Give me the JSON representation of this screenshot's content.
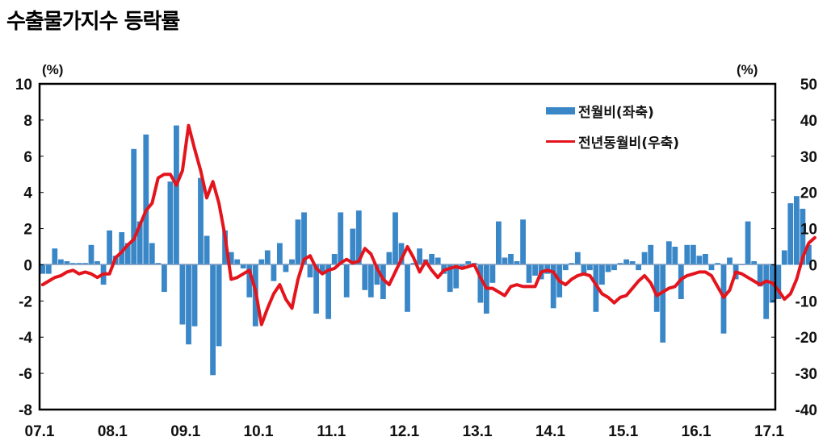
{
  "title": "수출물가지수 등락률",
  "colors": {
    "bar": "#3a87c8",
    "line": "#e4141c",
    "axis": "#000000"
  },
  "legend": {
    "bar_label": "전월비(좌축)",
    "line_label": "전년동월비(우축)"
  },
  "axes": {
    "left_unit": "(%)",
    "right_unit": "(%)",
    "left_ticks": [
      "10",
      "8",
      "6",
      "4",
      "2",
      "0",
      "-2",
      "-4",
      "-6",
      "-8"
    ],
    "right_ticks": [
      "50",
      "40",
      "30",
      "20",
      "10",
      "0",
      "-10",
      "-20",
      "-30",
      "-40"
    ],
    "x_ticks": [
      "07.1",
      "08.1",
      "09.1",
      "10.1",
      "11.1",
      "12.1",
      "13.1",
      "14.1",
      "15.1",
      "16.1",
      "17.1"
    ]
  },
  "chart_data": {
    "type": "bar+line",
    "title": "수출물가지수 등락률",
    "xlabel": "",
    "ylabel_left": "(%)",
    "ylabel_right": "(%)",
    "ylim_left": [
      -8,
      10
    ],
    "ylim_right": [
      -40,
      50
    ],
    "x_start": "2007.1",
    "x_end": "2017.1",
    "frequency": "monthly",
    "grid": false,
    "legend_position": "upper right",
    "series": [
      {
        "name": "전월비(좌축)",
        "type": "bar",
        "axis": "left",
        "values": [
          -0.5,
          -0.5,
          0.9,
          0.3,
          0.2,
          0.1,
          0.1,
          0.1,
          1.1,
          0.2,
          -1.1,
          1.9,
          0.5,
          1.8,
          1.2,
          6.4,
          2.4,
          7.2,
          1.2,
          0.1,
          -1.5,
          4.6,
          7.7,
          -3.3,
          -4.4,
          -3.4,
          4.8,
          1.6,
          -6.1,
          -4.5,
          1.9,
          0.7,
          0.3,
          -0.2,
          -1.8,
          -3.4,
          0.3,
          0.8,
          -0.9,
          1.2,
          -0.4,
          0.3,
          2.5,
          2.9,
          -0.7,
          -2.7,
          -0.5,
          -3.0,
          0.6,
          2.9,
          -1.8,
          2.0,
          3.0,
          -1.4,
          -1.8,
          -1.1,
          -1.9,
          0.7,
          2.9,
          1.2,
          -2.6,
          0.1,
          0.9,
          0.3,
          0.6,
          0.4,
          -0.5,
          -1.5,
          -1.3,
          -0.1,
          0.2,
          0.1,
          -2.1,
          -2.7,
          -1.0,
          2.4,
          0.4,
          0.6,
          0.2,
          2.5,
          -1.0,
          -0.6,
          -0.8,
          -0.5,
          -2.4,
          -1.8,
          -0.3,
          0.1,
          0.7,
          -0.6,
          -0.3,
          -2.6,
          -1.1,
          -0.4,
          -0.3,
          0.1,
          0.3,
          0.2,
          -0.3,
          0.7,
          1.1,
          -2.6,
          -4.3,
          1.3,
          1.0,
          -1.9,
          1.1,
          1.1,
          0.5,
          0.6,
          -0.3,
          0.1,
          -3.8,
          0.4,
          -0.8,
          0.0,
          2.4,
          0.2,
          -1.2,
          -3.0,
          -2.1,
          -1.9,
          0.8,
          3.4,
          3.8,
          3.1,
          1.1
        ]
      },
      {
        "name": "전년동월비(우축)",
        "type": "line",
        "axis": "right",
        "values": [
          -5.5,
          -4.5,
          -3.5,
          -3.0,
          -2.0,
          -1.5,
          -2.5,
          -2.0,
          -2.5,
          -3.5,
          -2.5,
          -2.5,
          2.0,
          3.5,
          5.5,
          7.0,
          11.0,
          15.0,
          17.0,
          24.0,
          25.0,
          25.0,
          22.0,
          26.0,
          38.5,
          32.0,
          26.0,
          18.5,
          23.0,
          17.0,
          8.0,
          -4.0,
          -3.5,
          -2.5,
          -1.5,
          -7.0,
          -16.5,
          -12.0,
          -8.0,
          -5.5,
          -9.5,
          -12.0,
          -4.0,
          1.5,
          2.5,
          -1.0,
          -2.5,
          -1.5,
          -1.0,
          0.5,
          1.5,
          0.5,
          1.0,
          4.5,
          3.0,
          -1.0,
          -4.0,
          -5.5,
          -2.0,
          1.5,
          5.0,
          2.0,
          -2.0,
          1.0,
          -1.5,
          -3.5,
          -1.5,
          -1.0,
          -0.5,
          -1.0,
          -0.5,
          0.0,
          -3.5,
          -6.5,
          -6.5,
          -7.5,
          -8.5,
          -6.0,
          -5.5,
          -6.0,
          -6.0,
          -6.0,
          -2.0,
          -1.5,
          -2.0,
          -4.5,
          -5.5,
          -4.0,
          -3.0,
          -2.5,
          -3.0,
          -5.5,
          -8.0,
          -9.0,
          -10.5,
          -9.0,
          -8.5,
          -6.5,
          -4.5,
          -3.0,
          -5.0,
          -8.5,
          -7.5,
          -6.5,
          -6.0,
          -4.0,
          -3.0,
          -2.5,
          -2.0,
          -2.0,
          -3.0,
          -6.0,
          -9.0,
          -7.0,
          -2.0,
          -2.5,
          -3.5,
          -4.5,
          -5.5,
          -4.5,
          -5.0,
          -7.0,
          -9.5,
          -8.0,
          -4.0,
          2.0,
          6.0,
          7.5
        ]
      }
    ]
  }
}
